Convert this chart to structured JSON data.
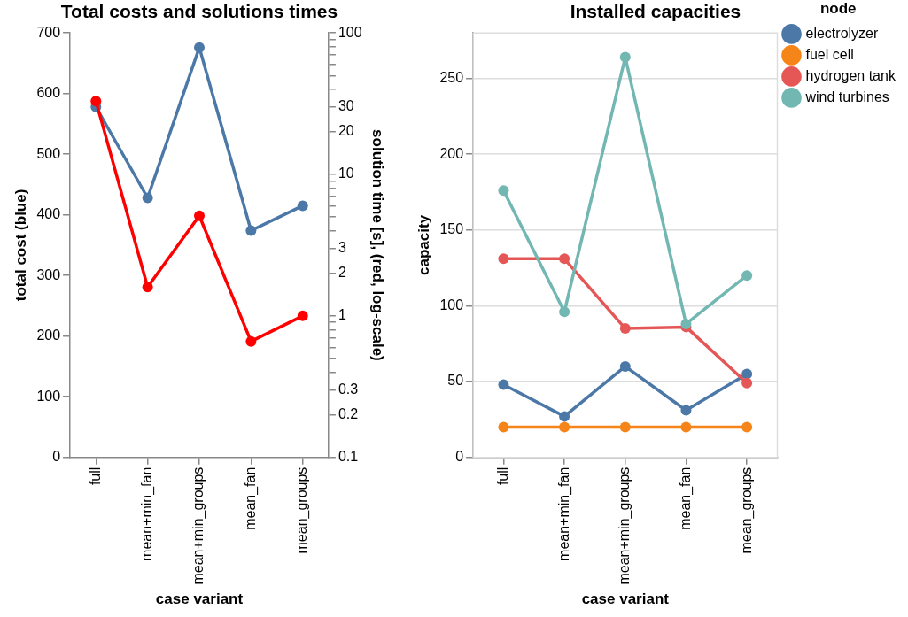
{
  "chart_data": [
    {
      "type": "line",
      "title": "Total costs and solutions times",
      "xlabel": "case variant",
      "ylabel": "total cost (blue)",
      "y2label": "solution time [s], (red, log-scale)",
      "categories": [
        "full",
        "mean+min_fan",
        "mean+min_groups",
        "mean_fan",
        "mean_groups"
      ],
      "series": [
        {
          "color": "#4c78a8",
          "values": [
            578,
            428,
            676,
            374,
            415
          ]
        },
        {
          "color": "#ff0000",
          "axis": "y2",
          "values": [
            33,
            1.6,
            5.1,
            0.66,
            1.0
          ]
        }
      ],
      "ylim": [
        0,
        700
      ],
      "yticks": [
        0,
        100,
        200,
        300,
        400,
        500,
        600,
        700
      ],
      "y2lim": [
        0.1,
        100
      ],
      "y2ticks": [
        0.1,
        0.2,
        0.3,
        {
          "value": 0.4,
          "label": null
        },
        {
          "value": 0.5,
          "label": null
        },
        {
          "value": 0.6,
          "label": null
        },
        {
          "value": 0.7,
          "label": null
        },
        {
          "value": 0.8,
          "label": null
        },
        {
          "value": 0.9,
          "label": null
        },
        1,
        2,
        3,
        {
          "value": 4,
          "label": null
        },
        {
          "value": 5,
          "label": null
        },
        {
          "value": 6,
          "label": null
        },
        {
          "value": 7,
          "label": null
        },
        {
          "value": 8,
          "label": null
        },
        {
          "value": 9,
          "label": null
        },
        10,
        20,
        30,
        {
          "value": 40,
          "label": null
        },
        {
          "value": 50,
          "label": null
        },
        {
          "value": 60,
          "label": null
        },
        {
          "value": 70,
          "label": null
        },
        {
          "value": 80,
          "label": null
        },
        {
          "value": 90,
          "label": null
        },
        100
      ],
      "log": "y2",
      "grid": false,
      "legend": false,
      "marker": "circle",
      "line_style": "solid"
    },
    {
      "type": "line",
      "title": "Installed capacities",
      "xlabel": "case variant",
      "ylabel": "capacity",
      "legend_title": "node",
      "categories": [
        "full",
        "mean+min_fan",
        "mean+min_groups",
        "mean_fan",
        "mean_groups"
      ],
      "series": [
        {
          "name": "electrolyzer",
          "color": "#4c78a8",
          "values": [
            48,
            27,
            60,
            31,
            55
          ]
        },
        {
          "name": "fuel cell",
          "color": "#f58518",
          "values": [
            20,
            20,
            20,
            20,
            20
          ]
        },
        {
          "name": "hydrogen tank",
          "color": "#e45756",
          "values": [
            131,
            131,
            85,
            86,
            49
          ]
        },
        {
          "name": "wind turbines",
          "color": "#72b7b2",
          "values": [
            176,
            96,
            264,
            88,
            120
          ]
        }
      ],
      "ylim": [
        0,
        280
      ],
      "yticks": [
        0,
        50,
        100,
        150,
        200,
        250
      ],
      "grid": "y",
      "legend": "top right",
      "marker": "circle",
      "line_style": "solid"
    }
  ]
}
